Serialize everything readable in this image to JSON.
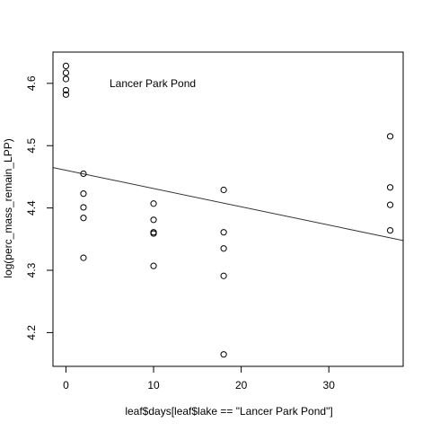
{
  "chart_data": {
    "type": "scatter",
    "title": "",
    "xlabel": "leaf$days[leaf$lake == \"Lancer Park Pond\"]",
    "ylabel": "log(perc_mass_remain_LPP)",
    "annotation": "Lancer Park Pond",
    "xlim": [
      -1.48,
      38.48
    ],
    "ylim": [
      4.1458,
      4.6502
    ],
    "xticks": [
      0,
      10,
      20,
      30
    ],
    "yticks": [
      4.2,
      4.3,
      4.4,
      4.5,
      4.6
    ],
    "ytick_labels": [
      "4.2",
      "4.3",
      "4.4",
      "4.5",
      "4.6"
    ],
    "grid": false,
    "legend": "none",
    "points": [
      {
        "x": 0,
        "y": 4.628
      },
      {
        "x": 0,
        "y": 4.617
      },
      {
        "x": 0,
        "y": 4.607
      },
      {
        "x": 0,
        "y": 4.589
      },
      {
        "x": 0,
        "y": 4.582
      },
      {
        "x": 2,
        "y": 4.455
      },
      {
        "x": 2,
        "y": 4.423
      },
      {
        "x": 2,
        "y": 4.401
      },
      {
        "x": 2,
        "y": 4.384
      },
      {
        "x": 2,
        "y": 4.32
      },
      {
        "x": 10,
        "y": 4.407
      },
      {
        "x": 10,
        "y": 4.381
      },
      {
        "x": 10,
        "y": 4.361
      },
      {
        "x": 10,
        "y": 4.359
      },
      {
        "x": 10,
        "y": 4.307
      },
      {
        "x": 18,
        "y": 4.429
      },
      {
        "x": 18,
        "y": 4.361
      },
      {
        "x": 18,
        "y": 4.335
      },
      {
        "x": 18,
        "y": 4.291
      },
      {
        "x": 18,
        "y": 4.165
      },
      {
        "x": 37,
        "y": 4.515
      },
      {
        "x": 37,
        "y": 4.433
      },
      {
        "x": 37,
        "y": 4.405
      },
      {
        "x": 37,
        "y": 4.364
      }
    ],
    "fit_line": {
      "intercept": 4.4605,
      "slope": -0.00293
    }
  },
  "colors": {
    "background": "#ffffff",
    "foreground": "#000000",
    "line": "#333333"
  }
}
